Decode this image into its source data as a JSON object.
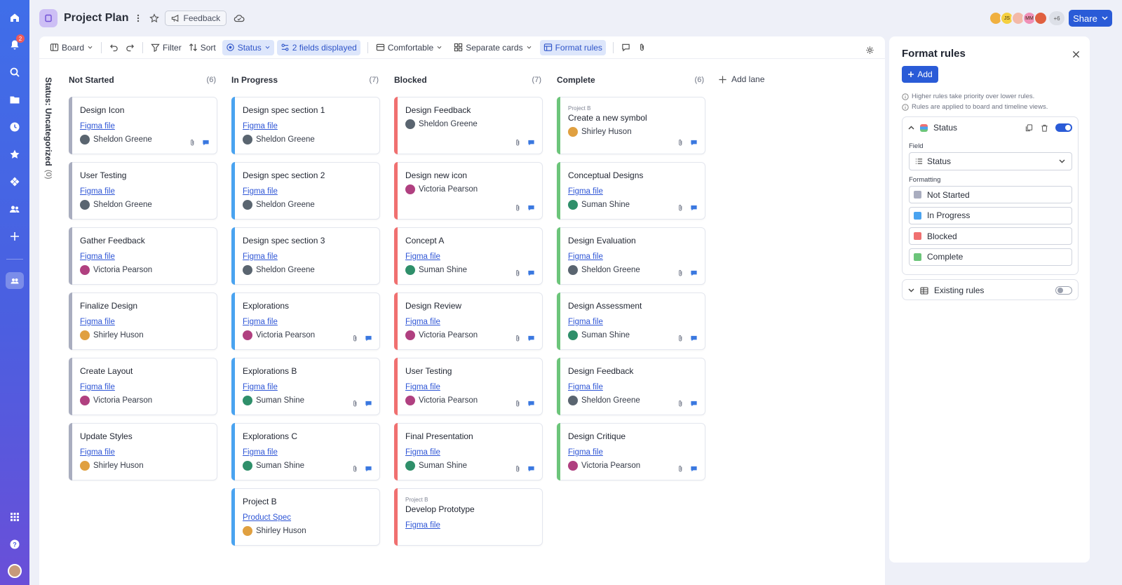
{
  "header": {
    "title": "Project Plan",
    "feedback_label": "Feedback",
    "avatars": [
      {
        "initials": "",
        "color": "#f0b040"
      },
      {
        "initials": "JS",
        "color": "#f5d040"
      },
      {
        "initials": "",
        "color": "#f3b9a8"
      },
      {
        "initials": "MM",
        "color": "#f08fb6"
      },
      {
        "initials": "",
        "color": "#e06040"
      }
    ],
    "avatars_more": "+6",
    "share_label": "Share"
  },
  "sidebar": {
    "notification_count": "2"
  },
  "toolbar": {
    "board": "Board",
    "filter": "Filter",
    "sort": "Sort",
    "status": "Status",
    "fields": "2 fields displayed",
    "density": "Comfortable",
    "cards": "Separate cards",
    "format_rules": "Format rules"
  },
  "status_side": {
    "label": "Status: Uncategorized",
    "count": "(0)"
  },
  "lanes": [
    {
      "name": "Not Started",
      "count": "(6)",
      "color": "#a9adbf",
      "cards": [
        {
          "project": "",
          "title": "Design Icon",
          "link": "Figma file",
          "person": "Sheldon Greene",
          "avatar": "#5a6570",
          "icons": true
        },
        {
          "project": "",
          "title": "User Testing",
          "link": "Figma file",
          "person": "Sheldon Greene",
          "avatar": "#5a6570",
          "icons": false
        },
        {
          "project": "",
          "title": "Gather Feedback",
          "link": "Figma file",
          "person": "Victoria Pearson",
          "avatar": "#b04080",
          "icons": false
        },
        {
          "project": "",
          "title": "Finalize Design",
          "link": "Figma file",
          "person": "Shirley Huson",
          "avatar": "#e0a040",
          "icons": false
        },
        {
          "project": "",
          "title": "Create Layout",
          "link": "Figma file",
          "person": "Victoria Pearson",
          "avatar": "#b04080",
          "icons": false
        },
        {
          "project": "",
          "title": "Update Styles",
          "link": "Figma file",
          "person": "Shirley Huson",
          "avatar": "#e0a040",
          "icons": false
        }
      ]
    },
    {
      "name": "In Progress",
      "count": "(7)",
      "color": "#4aa3f0",
      "cards": [
        {
          "project": "",
          "title": "Design spec section 1",
          "link": "Figma file",
          "person": "Sheldon Greene",
          "avatar": "#5a6570",
          "icons": false
        },
        {
          "project": "",
          "title": "Design spec section 2",
          "link": "Figma file",
          "person": "Sheldon Greene",
          "avatar": "#5a6570",
          "icons": false
        },
        {
          "project": "",
          "title": "Design spec section 3",
          "link": "Figma file",
          "person": "Sheldon Greene",
          "avatar": "#5a6570",
          "icons": false
        },
        {
          "project": "",
          "title": "Explorations",
          "link": "Figma file",
          "person": "Victoria Pearson",
          "avatar": "#b04080",
          "icons": true
        },
        {
          "project": "",
          "title": "Explorations B",
          "link": "Figma file",
          "person": "Suman Shine",
          "avatar": "#2f8f6a",
          "icons": true
        },
        {
          "project": "",
          "title": "Explorations C",
          "link": "Figma file",
          "person": "Suman Shine",
          "avatar": "#2f8f6a",
          "icons": true
        },
        {
          "project": "",
          "title": "Project B",
          "link": "Product Spec",
          "person": "Shirley Huson",
          "avatar": "#e0a040",
          "icons": false
        }
      ]
    },
    {
      "name": "Blocked",
      "count": "(7)",
      "color": "#f07070",
      "cards": [
        {
          "project": "",
          "title": "Design Feedback",
          "link": "",
          "person": "Sheldon Greene",
          "avatar": "#5a6570",
          "icons": true
        },
        {
          "project": "",
          "title": "Design new icon",
          "link": "",
          "person": "Victoria Pearson",
          "avatar": "#b04080",
          "icons": true
        },
        {
          "project": "",
          "title": "Concept A",
          "link": "Figma file",
          "person": "Suman Shine",
          "avatar": "#2f8f6a",
          "icons": true
        },
        {
          "project": "",
          "title": "Design Review",
          "link": "Figma file",
          "person": "Victoria Pearson",
          "avatar": "#b04080",
          "icons": true
        },
        {
          "project": "",
          "title": "User Testing",
          "link": "Figma file",
          "person": "Victoria Pearson",
          "avatar": "#b04080",
          "icons": true
        },
        {
          "project": "",
          "title": "Final Presentation",
          "link": "Figma file",
          "person": "Suman Shine",
          "avatar": "#2f8f6a",
          "icons": true
        },
        {
          "project": "Project B",
          "title": "Develop Prototype",
          "link": "Figma file",
          "person": "",
          "avatar": "",
          "icons": false
        }
      ]
    },
    {
      "name": "Complete",
      "count": "(6)",
      "color": "#6cc57a",
      "cards": [
        {
          "project": "Project B",
          "title": "Create a new symbol",
          "link": "",
          "person": "Shirley Huson",
          "avatar": "#e0a040",
          "icons": true
        },
        {
          "project": "",
          "title": "Conceptual Designs",
          "link": "Figma file",
          "person": "Suman Shine",
          "avatar": "#2f8f6a",
          "icons": true
        },
        {
          "project": "",
          "title": "Design Evaluation",
          "link": "Figma file",
          "person": "Sheldon Greene",
          "avatar": "#5a6570",
          "icons": true
        },
        {
          "project": "",
          "title": "Design Assessment",
          "link": "Figma file",
          "person": "Suman Shine",
          "avatar": "#2f8f6a",
          "icons": true
        },
        {
          "project": "",
          "title": "Design Feedback",
          "link": "Figma file",
          "person": "Sheldon Greene",
          "avatar": "#5a6570",
          "icons": true
        },
        {
          "project": "",
          "title": "Design Critique",
          "link": "Figma file",
          "person": "Victoria Pearson",
          "avatar": "#b04080",
          "icons": true
        }
      ]
    }
  ],
  "add_lane_label": "Add lane",
  "format_rules": {
    "title": "Format rules",
    "add_label": "Add",
    "note_1": "Higher rules take priority over lower rules.",
    "note_2": "Rules are applied to board and timeline views.",
    "rule": {
      "name": "Status",
      "enabled": true,
      "field_label": "Field",
      "field_value": "Status",
      "formatting_label": "Formatting",
      "formats": [
        {
          "label": "Not Started",
          "color": "#a9adbf"
        },
        {
          "label": "In Progress",
          "color": "#4aa3f0"
        },
        {
          "label": "Blocked",
          "color": "#f07070"
        },
        {
          "label": "Complete",
          "color": "#6cc57a"
        }
      ]
    },
    "existing": {
      "name": "Existing rules",
      "enabled": false
    }
  }
}
